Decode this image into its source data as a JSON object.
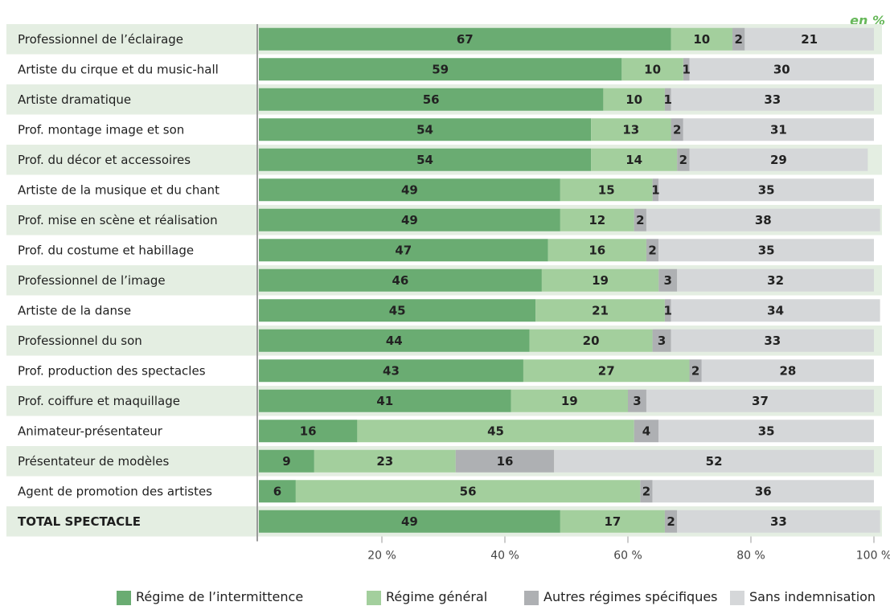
{
  "header": {
    "unit_label": "en %"
  },
  "chart_data": {
    "type": "bar",
    "orientation": "horizontal",
    "stacked": true,
    "categories": [
      "Professionnel de l’éclairage",
      "Artiste du cirque et du music-hall",
      "Artiste dramatique",
      "Prof. montage image et son",
      "Prof. du décor et accessoires",
      "Artiste de la musique et du chant",
      "Prof. mise en scène et réalisation",
      "Prof. du costume et habillage",
      "Professionnel de l’image",
      "Artiste de la danse",
      "Professionnel du son",
      "Prof. production des spectacles",
      "Prof. coiffure et maquillage",
      "Animateur-présentateur",
      "Présentateur de modèles",
      "Agent de promotion des artistes",
      "TOTAL SPECTACLE"
    ],
    "series": [
      {
        "name": "Régime de l’intermittence",
        "color": "#6aac72",
        "values": [
          67,
          59,
          56,
          54,
          54,
          49,
          49,
          47,
          46,
          45,
          44,
          43,
          41,
          16,
          9,
          6,
          49
        ]
      },
      {
        "name": "Régime général",
        "color": "#a3cf9d",
        "values": [
          10,
          10,
          10,
          13,
          14,
          15,
          12,
          16,
          19,
          21,
          20,
          27,
          19,
          45,
          23,
          56,
          17
        ]
      },
      {
        "name": "Autres régimes spécifiques",
        "color": "#aeb0b3",
        "values": [
          2,
          1,
          1,
          2,
          2,
          1,
          2,
          2,
          3,
          1,
          3,
          2,
          3,
          4,
          16,
          2,
          2
        ]
      },
      {
        "name": "Sans indemnisation",
        "color": "#d5d7d9",
        "values": [
          21,
          30,
          33,
          31,
          29,
          35,
          38,
          35,
          32,
          34,
          33,
          28,
          37,
          35,
          52,
          36,
          33
        ]
      }
    ],
    "x_ticks": [
      "20 %",
      "40 %",
      "60 %",
      "80 %",
      "100 %"
    ],
    "xlim": [
      0,
      100
    ],
    "unit": "en %",
    "legend_position": "bottom",
    "row_banding": true
  },
  "colors": {
    "band_even": "#e4eee2",
    "band_odd": "#ffffff",
    "axis": "#9a9a9a",
    "accent_green": "#67b85a"
  }
}
